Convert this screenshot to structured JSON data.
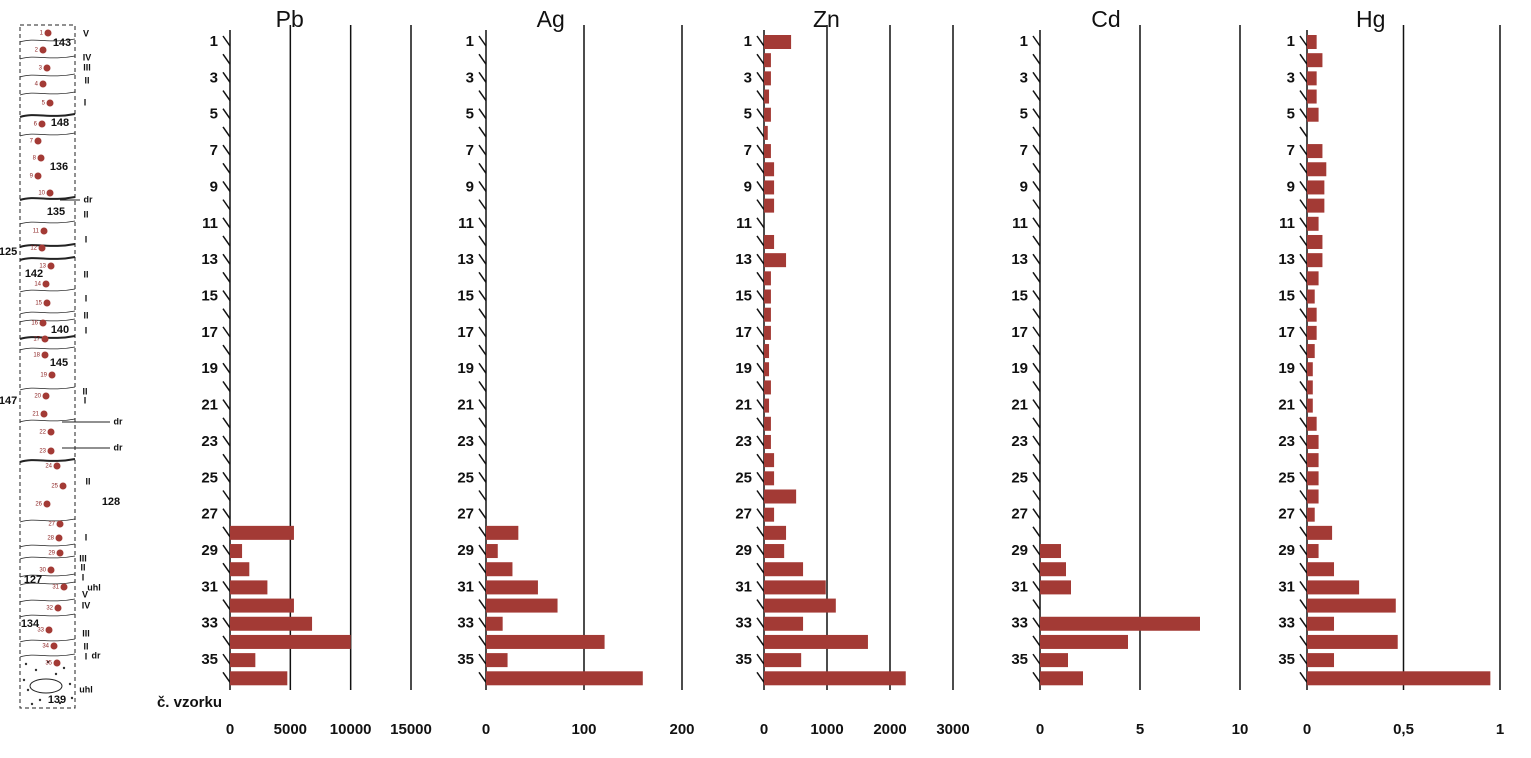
{
  "column": {
    "samples": [
      1,
      2,
      3,
      4,
      5,
      6,
      7,
      8,
      9,
      10,
      11,
      12,
      13,
      14,
      15,
      16,
      17,
      18,
      19,
      20,
      21,
      22,
      23,
      24,
      25,
      26,
      27,
      28,
      29,
      30,
      31,
      32,
      33,
      34,
      35
    ],
    "layers": [
      "143",
      "148",
      "136",
      "135",
      "125",
      "142",
      "140",
      "145",
      "147",
      "128",
      "127",
      "134",
      "139"
    ],
    "notes": [
      "V",
      "IV",
      "III",
      "II",
      "I",
      "II",
      "I",
      "II",
      "I",
      "II",
      "I",
      "II",
      "I",
      "II",
      "I",
      "III",
      "II",
      "I",
      "V",
      "IV",
      "III",
      "II",
      "I",
      "dr",
      "dr",
      "dr",
      "dr",
      "uhl",
      "uhl"
    ]
  },
  "chart_data": [
    {
      "type": "bar",
      "title": "Pb",
      "ylabel": "č. vzorku",
      "categories": [
        1,
        null,
        3,
        null,
        5,
        null,
        7,
        null,
        9,
        null,
        11,
        null,
        13,
        null,
        15,
        null,
        17,
        null,
        19,
        null,
        21,
        null,
        23,
        null,
        25,
        null,
        27,
        null,
        29,
        null,
        31,
        null,
        33,
        null,
        35,
        null
      ],
      "values": [
        0,
        0,
        0,
        0,
        0,
        0,
        0,
        0,
        0,
        0,
        0,
        0,
        0,
        0,
        0,
        0,
        0,
        0,
        0,
        0,
        0,
        0,
        0,
        0,
        0,
        0,
        0,
        5300,
        1000,
        1600,
        3100,
        5300,
        6800,
        10000,
        2100,
        4750
      ],
      "color": "#a33a35",
      "xlim": [
        0,
        15000
      ],
      "xticks": [
        0,
        5000,
        10000,
        15000
      ],
      "grid": true
    },
    {
      "type": "bar",
      "title": "Ag",
      "categories": [
        1,
        null,
        3,
        null,
        5,
        null,
        7,
        null,
        9,
        null,
        11,
        null,
        13,
        null,
        15,
        null,
        17,
        null,
        19,
        null,
        21,
        null,
        23,
        null,
        25,
        null,
        27,
        null,
        29,
        null,
        31,
        null,
        33,
        null,
        35,
        null
      ],
      "values": [
        0,
        0,
        0,
        0,
        0,
        0,
        0,
        0,
        0,
        0,
        0,
        0,
        0,
        0,
        0,
        0,
        0,
        0,
        0,
        0,
        0,
        0,
        0,
        0,
        0,
        0,
        0,
        33,
        12,
        27,
        53,
        73,
        17,
        121,
        22,
        160
      ],
      "color": "#a33a35",
      "xlim": [
        0,
        200
      ],
      "xticks": [
        0,
        100,
        200
      ],
      "grid": true
    },
    {
      "type": "bar",
      "title": "Zn",
      "categories": [
        1,
        null,
        3,
        null,
        5,
        null,
        7,
        null,
        9,
        null,
        11,
        null,
        13,
        null,
        15,
        null,
        17,
        null,
        19,
        null,
        21,
        null,
        23,
        null,
        25,
        null,
        27,
        null,
        29,
        null,
        31,
        null,
        33,
        null,
        35,
        null
      ],
      "values": [
        430,
        110,
        110,
        80,
        110,
        60,
        110,
        160,
        160,
        160,
        0,
        160,
        350,
        110,
        110,
        110,
        110,
        80,
        80,
        110,
        80,
        110,
        110,
        160,
        160,
        510,
        160,
        350,
        320,
        620,
        980,
        1140,
        620,
        1650,
        590,
        2250
      ],
      "color": "#a33a35",
      "xlim": [
        0,
        3000
      ],
      "xticks": [
        0,
        1000,
        2000,
        3000
      ],
      "grid": true
    },
    {
      "type": "bar",
      "title": "Cd",
      "categories": [
        1,
        null,
        3,
        null,
        5,
        null,
        7,
        null,
        9,
        null,
        11,
        null,
        13,
        null,
        15,
        null,
        17,
        null,
        19,
        null,
        21,
        null,
        23,
        null,
        25,
        null,
        27,
        null,
        29,
        null,
        31,
        null,
        33,
        null,
        35,
        null
      ],
      "values": [
        0,
        0,
        0,
        0,
        0,
        0,
        0,
        0,
        0,
        0,
        0,
        0,
        0,
        0,
        0,
        0,
        0,
        0,
        0,
        0,
        0,
        0,
        0,
        0,
        0,
        0,
        0,
        0,
        1.05,
        1.3,
        1.55,
        0,
        8.0,
        4.4,
        1.4,
        2.15
      ],
      "color": "#a33a35",
      "xlim": [
        0,
        10
      ],
      "xticks": [
        0,
        5,
        10
      ],
      "grid": true
    },
    {
      "type": "bar",
      "title": "Hg",
      "categories": [
        1,
        null,
        3,
        null,
        5,
        null,
        7,
        null,
        9,
        null,
        11,
        null,
        13,
        null,
        15,
        null,
        17,
        null,
        19,
        null,
        21,
        null,
        23,
        null,
        25,
        null,
        27,
        null,
        29,
        null,
        31,
        null,
        33,
        null,
        35,
        null
      ],
      "values": [
        0.05,
        0.08,
        0.05,
        0.05,
        0.06,
        0,
        0.08,
        0.1,
        0.09,
        0.09,
        0.06,
        0.08,
        0.08,
        0.06,
        0.04,
        0.05,
        0.05,
        0.04,
        0.03,
        0.03,
        0.03,
        0.05,
        0.06,
        0.06,
        0.06,
        0.06,
        0.04,
        0.13,
        0.06,
        0.14,
        0.27,
        0.46,
        0.14,
        0.47,
        0.14,
        0.95
      ],
      "color": "#a33a35",
      "xlim": [
        0,
        1
      ],
      "xticks": [
        0,
        {
          "value": 0.5,
          "label": "0,5"
        },
        1
      ],
      "grid": true
    }
  ]
}
